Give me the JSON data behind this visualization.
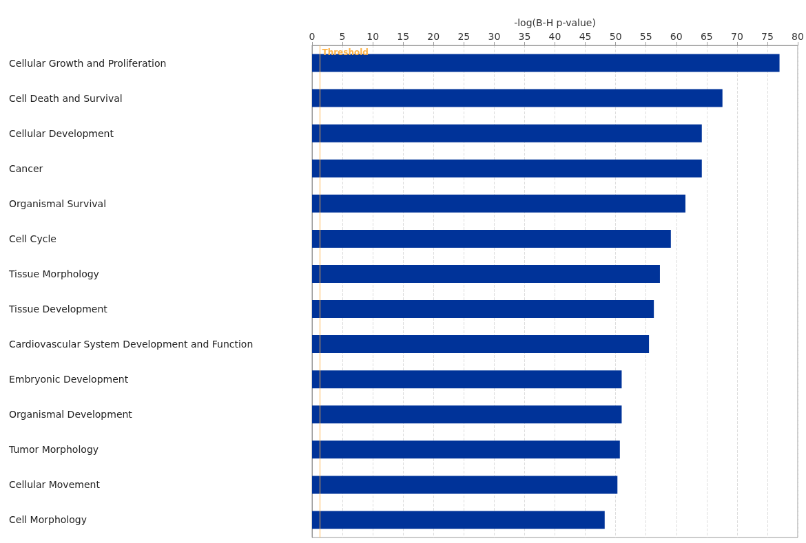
{
  "chart_data": {
    "type": "bar",
    "orientation": "horizontal",
    "xlabel": "-log(B-H p-value)",
    "categories": [
      "Cellular Growth and Proliferation",
      "Cell Death and Survival",
      "Cellular Development",
      "Cancer",
      "Organismal Survival",
      "Cell Cycle",
      "Tissue Morphology",
      "Tissue Development",
      "Cardiovascular System Development and Function",
      "Embryonic Development",
      "Organismal Development",
      "Tumor Morphology",
      "Cellular Movement",
      "Cell Morphology"
    ],
    "values": [
      77.0,
      67.6,
      64.2,
      64.2,
      61.5,
      59.1,
      57.3,
      56.3,
      55.5,
      51.0,
      51.0,
      50.7,
      50.3,
      48.2
    ],
    "color": "#003399",
    "xlim": [
      0,
      80
    ],
    "xticks": [
      0,
      5,
      10,
      15,
      20,
      25,
      30,
      35,
      40,
      45,
      50,
      55,
      60,
      65,
      70,
      75,
      80
    ],
    "grid": "x",
    "ref_lines": [
      {
        "axis": "x",
        "value": 1.3,
        "label": "Threshold",
        "color": "#ffb347"
      }
    ]
  }
}
